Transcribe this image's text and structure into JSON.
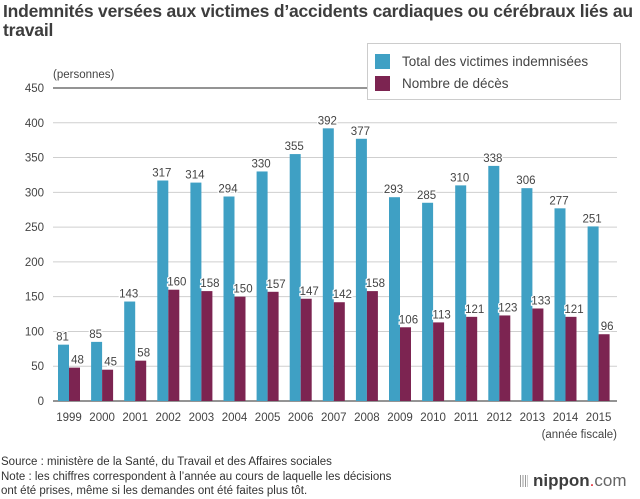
{
  "chart_data": {
    "type": "bar",
    "title": "Indemnités versées aux victimes d’accidents cardiaques ou cérébraux liés au travail",
    "ylabel": "(personnes)",
    "xlabel": "(année fiscale)",
    "ylim": [
      0,
      450
    ],
    "yticks": [
      0,
      50,
      100,
      150,
      200,
      250,
      300,
      350,
      400,
      450
    ],
    "grid": true,
    "legend_position": "top-right",
    "categories": [
      "1999",
      "2000",
      "2001",
      "2002",
      "2003",
      "2004",
      "2005",
      "2006",
      "2007",
      "2008",
      "2009",
      "2010",
      "2011",
      "2012",
      "2013",
      "2014",
      "2015"
    ],
    "series": [
      {
        "name": "Total des victimes indemnisées",
        "color": "#3fa0c4",
        "values": [
          81,
          85,
          143,
          317,
          314,
          294,
          330,
          355,
          392,
          377,
          293,
          285,
          310,
          338,
          306,
          277,
          251
        ]
      },
      {
        "name": "Nombre de décès",
        "color": "#7c2451",
        "values": [
          48,
          45,
          58,
          160,
          158,
          150,
          157,
          147,
          142,
          158,
          106,
          113,
          121,
          123,
          133,
          121,
          96
        ]
      }
    ]
  },
  "footer": {
    "source": "Source : ministère de la Santé, du Travail et des Affaires sociales",
    "note_line1": "Note : les chiffres correspondent à l’année au cours de laquelle les décisions",
    "note_line2": "ont été prises, même si les demandes ont été faites plus tôt."
  },
  "brand": {
    "name": "nippon",
    "dot": ".",
    "tld": "com"
  }
}
